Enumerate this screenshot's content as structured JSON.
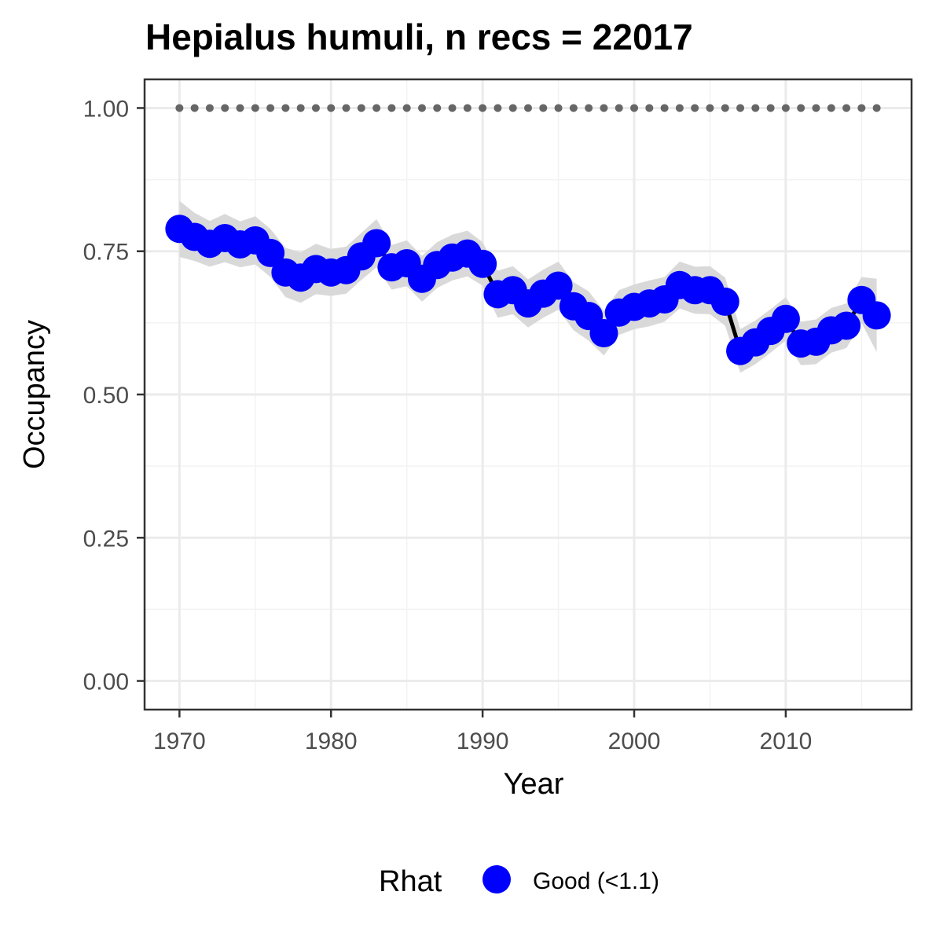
{
  "chart_data": {
    "type": "line",
    "title": "Hepialus humuli, n recs = 22017",
    "xlabel": "Year",
    "ylabel": "Occupancy",
    "xlim": [
      1967.7,
      2018.3
    ],
    "ylim": [
      -0.05,
      1.05
    ],
    "x_ticks": [
      1970,
      1980,
      1990,
      2000,
      2010
    ],
    "x_tick_labels": [
      "1970",
      "1980",
      "1990",
      "2000",
      "2010"
    ],
    "y_ticks": [
      0,
      0.25,
      0.5,
      0.75,
      1.0
    ],
    "y_tick_labels": [
      "0.00",
      "0.25",
      "0.50",
      "0.75",
      "1.00"
    ],
    "grid": true,
    "legend": {
      "title": "Rhat",
      "position": "bottom",
      "entries": [
        {
          "label": "Good (<1.1)",
          "color": "#0000ff"
        }
      ]
    },
    "x": [
      1970,
      1971,
      1972,
      1973,
      1974,
      1975,
      1976,
      1977,
      1978,
      1979,
      1980,
      1981,
      1982,
      1983,
      1984,
      1985,
      1986,
      1987,
      1988,
      1989,
      1990,
      1991,
      1992,
      1993,
      1994,
      1995,
      1996,
      1997,
      1998,
      1999,
      2000,
      2001,
      2002,
      2003,
      2004,
      2005,
      2006,
      2007,
      2008,
      2009,
      2010,
      2011,
      2012,
      2013,
      2014,
      2015,
      2016
    ],
    "series": [
      {
        "name": "Occupancy",
        "color": "#0000ff",
        "values": [
          0.789,
          0.775,
          0.763,
          0.773,
          0.762,
          0.769,
          0.747,
          0.713,
          0.704,
          0.719,
          0.713,
          0.717,
          0.741,
          0.764,
          0.722,
          0.729,
          0.702,
          0.726,
          0.739,
          0.746,
          0.728,
          0.675,
          0.682,
          0.659,
          0.676,
          0.69,
          0.654,
          0.637,
          0.607,
          0.643,
          0.653,
          0.659,
          0.666,
          0.691,
          0.682,
          0.682,
          0.662,
          0.576,
          0.591,
          0.611,
          0.632,
          0.589,
          0.592,
          0.612,
          0.62,
          0.665,
          0.638
        ],
        "lower": [
          0.74,
          0.733,
          0.723,
          0.731,
          0.722,
          0.727,
          0.705,
          0.67,
          0.66,
          0.675,
          0.672,
          0.676,
          0.7,
          0.722,
          0.683,
          0.689,
          0.662,
          0.686,
          0.699,
          0.706,
          0.69,
          0.634,
          0.64,
          0.617,
          0.634,
          0.648,
          0.612,
          0.594,
          0.568,
          0.604,
          0.614,
          0.619,
          0.627,
          0.65,
          0.641,
          0.64,
          0.62,
          0.538,
          0.553,
          0.573,
          0.594,
          0.551,
          0.553,
          0.573,
          0.581,
          0.625,
          0.574
        ],
        "upper": [
          0.838,
          0.817,
          0.803,
          0.815,
          0.802,
          0.811,
          0.789,
          0.756,
          0.748,
          0.763,
          0.754,
          0.758,
          0.782,
          0.806,
          0.761,
          0.769,
          0.742,
          0.766,
          0.779,
          0.786,
          0.766,
          0.716,
          0.724,
          0.701,
          0.718,
          0.732,
          0.696,
          0.68,
          0.646,
          0.682,
          0.692,
          0.699,
          0.705,
          0.732,
          0.723,
          0.724,
          0.704,
          0.614,
          0.629,
          0.649,
          0.67,
          0.627,
          0.631,
          0.651,
          0.659,
          0.705,
          0.702
        ]
      },
      {
        "name": "",
        "color": "#666666",
        "values": [
          1,
          1,
          1,
          1,
          1,
          1,
          1,
          1,
          1,
          1,
          1,
          1,
          1,
          1,
          1,
          1,
          1,
          1,
          1,
          1,
          1,
          1,
          1,
          1,
          1,
          1,
          1,
          1,
          1,
          1,
          1,
          1,
          1,
          1,
          1,
          1,
          1,
          1,
          1,
          1,
          1,
          1,
          1,
          1,
          1,
          1,
          1
        ]
      }
    ]
  },
  "colors": {
    "panel_border": "#333333",
    "grid_major": "#ebebeb",
    "grid_minor": "#f3f3f3",
    "ribbon": "#d9d9d9",
    "line": "#000000",
    "points": "#0000ff",
    "reference_points": "#666666"
  }
}
